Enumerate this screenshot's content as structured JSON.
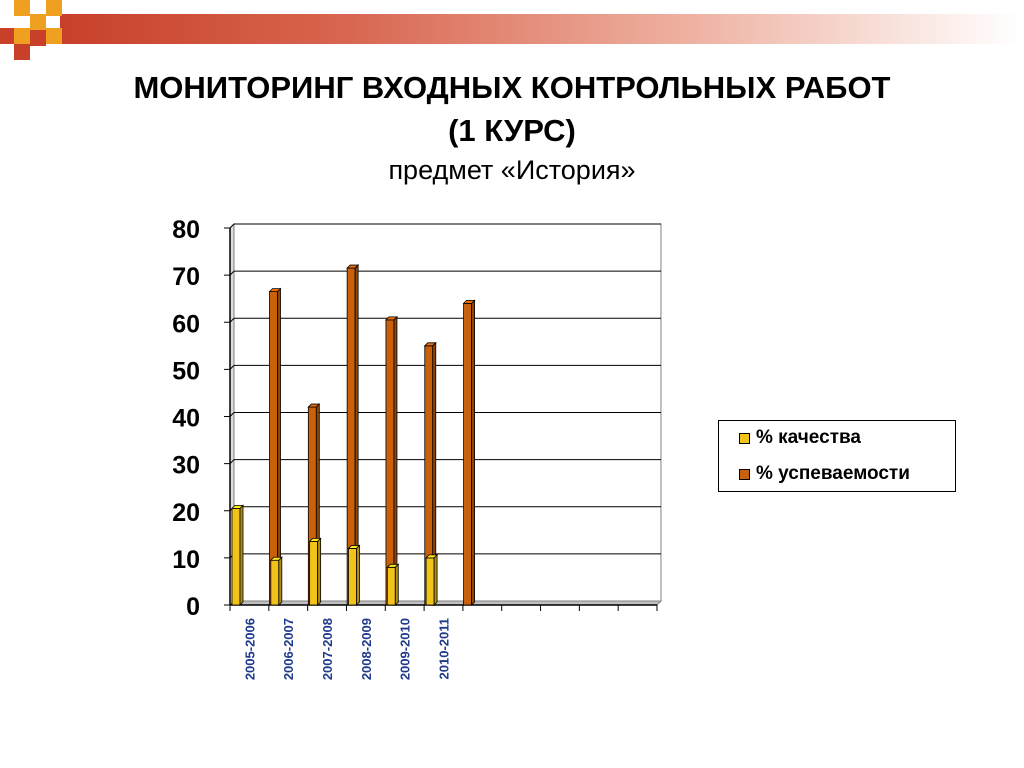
{
  "slide": {
    "title_line1": "МОНИТОРИНГ ВХОДНЫХ КОНТРОЛЬНЫХ РАБОТ",
    "title_line2": "(1 КУРС)",
    "subtitle": "предмет «История»"
  },
  "colors": {
    "accent_red": "#c8402a",
    "accent_orange": "#f0a020",
    "series_quality": "#f2c419",
    "series_progress": "#c8600c",
    "category_label": "#1f3a8c"
  },
  "chart_data": {
    "type": "bar",
    "categories": [
      "2005-2006",
      "2006-2007",
      "2007-2008",
      "2008-2009",
      "2009-2010",
      "2010-2011",
      "",
      "",
      "",
      "",
      ""
    ],
    "series": [
      {
        "name": "% качества",
        "values": [
          20.5,
          9.5,
          13.5,
          12,
          8,
          10,
          null,
          null,
          null,
          null,
          null
        ]
      },
      {
        "name": "% успеваемости",
        "values": [
          66.5,
          42,
          71.5,
          60.5,
          55,
          64,
          null,
          null,
          null,
          null,
          null
        ]
      }
    ],
    "yticks": [
      "0",
      "10",
      "20",
      "30",
      "40",
      "50",
      "60",
      "70",
      "80"
    ],
    "ylim": [
      0,
      80
    ],
    "grid": true,
    "legend": "right"
  }
}
